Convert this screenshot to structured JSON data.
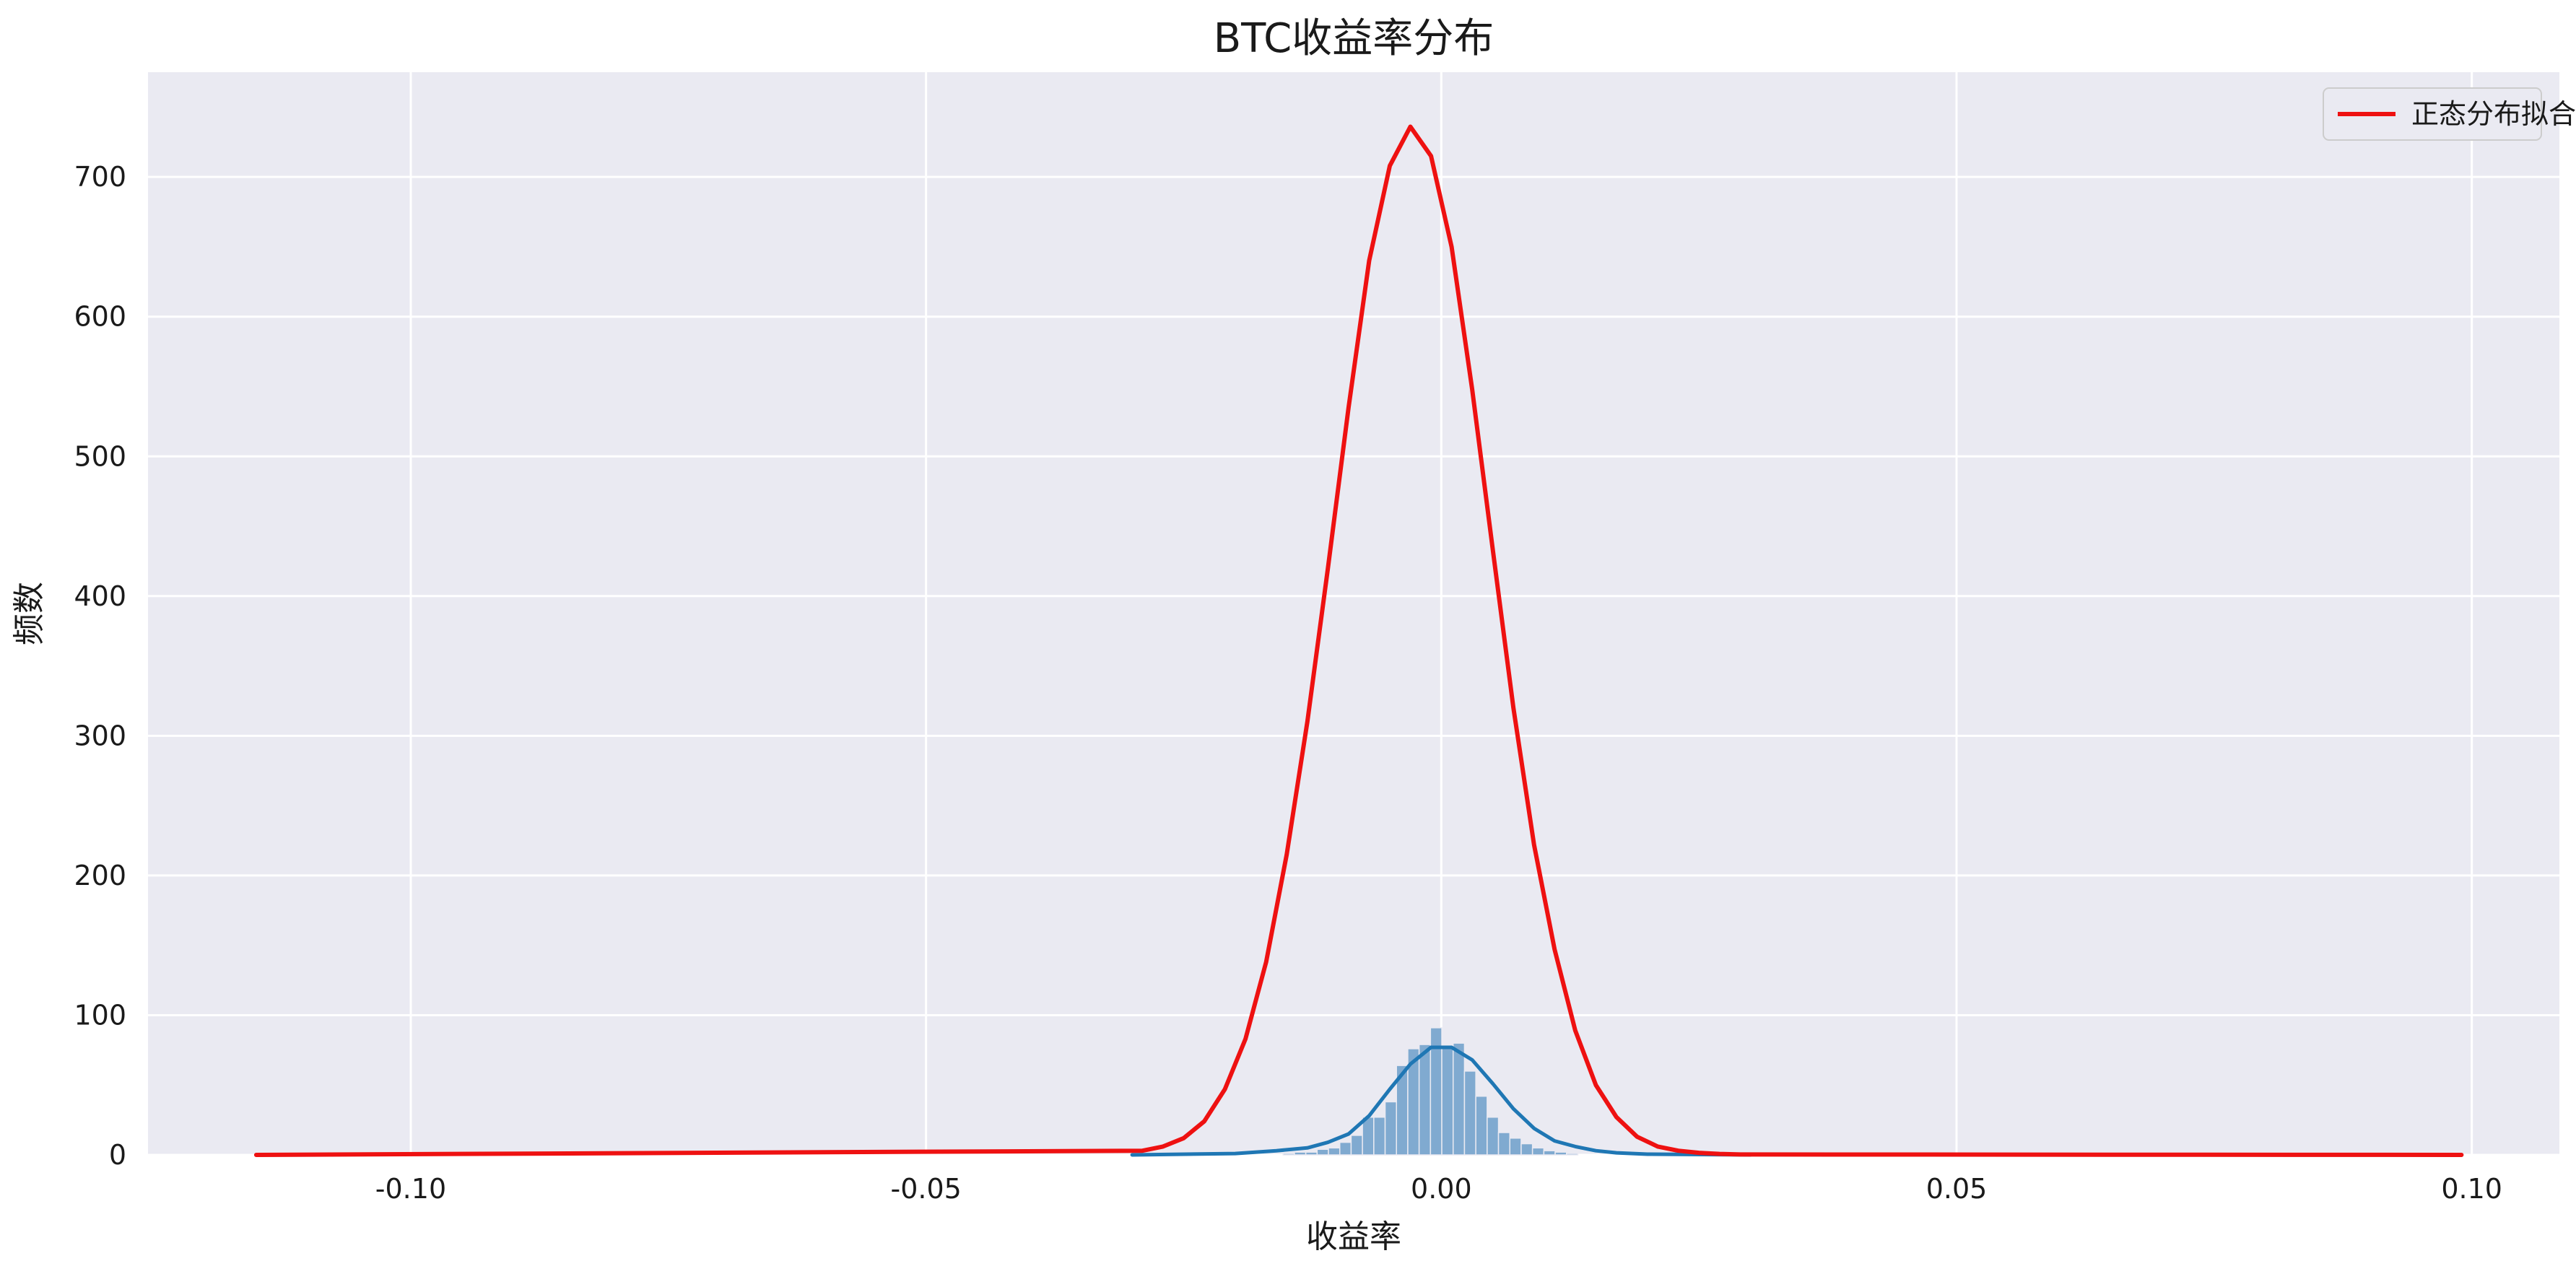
{
  "chart_data": {
    "type": "histogram",
    "title": "BTC收益率分布",
    "xlabel": "收益率",
    "ylabel": "频数",
    "xlim": [
      -0.1255,
      0.1085
    ],
    "ylim": [
      0,
      775
    ],
    "xticks": [
      -0.1,
      -0.05,
      0.0,
      0.05,
      0.1
    ],
    "xtick_labels": [
      "-0.10",
      "-0.05",
      "0.00",
      "0.05",
      "0.10"
    ],
    "yticks": [
      0,
      100,
      200,
      300,
      400,
      500,
      600,
      700
    ],
    "ytick_labels": [
      "0",
      "100",
      "200",
      "300",
      "400",
      "500",
      "600",
      "700"
    ],
    "grid": true,
    "legend_position": "top-right",
    "histogram": {
      "color": "#7aa7cd",
      "bin_width": 0.0011,
      "bins": [
        [
          -0.0148,
          1
        ],
        [
          -0.0137,
          2
        ],
        [
          -0.0126,
          2
        ],
        [
          -0.0115,
          4
        ],
        [
          -0.0104,
          5
        ],
        [
          -0.0093,
          9
        ],
        [
          -0.0082,
          14
        ],
        [
          -0.0071,
          27
        ],
        [
          -0.006,
          27
        ],
        [
          -0.0049,
          38
        ],
        [
          -0.0038,
          64
        ],
        [
          -0.0027,
          76
        ],
        [
          -0.0016,
          79
        ],
        [
          -0.0005,
          91
        ],
        [
          0.0006,
          77
        ],
        [
          0.0017,
          80
        ],
        [
          0.0028,
          60
        ],
        [
          0.0039,
          42
        ],
        [
          0.005,
          27
        ],
        [
          0.0061,
          16
        ],
        [
          0.0072,
          12
        ],
        [
          0.0083,
          8
        ],
        [
          0.0094,
          5
        ],
        [
          0.0105,
          3
        ],
        [
          0.0116,
          2
        ],
        [
          0.0127,
          1
        ]
      ]
    },
    "series": [
      {
        "name": "正态分布拟合",
        "color": "#ee1111",
        "x": [
          -0.115,
          -0.029,
          -0.027,
          -0.025,
          -0.023,
          -0.021,
          -0.019,
          -0.017,
          -0.015,
          -0.013,
          -0.011,
          -0.009,
          -0.007,
          -0.005,
          -0.003,
          -0.001,
          0.001,
          0.003,
          0.005,
          0.007,
          0.009,
          0.011,
          0.013,
          0.015,
          0.017,
          0.019,
          0.021,
          0.023,
          0.025,
          0.027,
          0.029,
          0.099
        ],
        "y": [
          0,
          3,
          6,
          12,
          24,
          47,
          83,
          138,
          215,
          310,
          420,
          535,
          640,
          708,
          736,
          715,
          650,
          548,
          433,
          320,
          222,
          147,
          89,
          50,
          27,
          13,
          6,
          3,
          1.5,
          0.7,
          0.3,
          0
        ]
      },
      {
        "color": "#1f77b4",
        "x": [
          -0.03,
          -0.02,
          -0.016,
          -0.013,
          -0.011,
          -0.009,
          -0.007,
          -0.005,
          -0.003,
          -0.001,
          0.001,
          0.003,
          0.005,
          0.007,
          0.009,
          0.011,
          0.013,
          0.015,
          0.017,
          0.02,
          0.03
        ],
        "y": [
          0,
          1,
          3,
          5,
          9,
          15,
          28,
          47,
          65,
          77,
          77,
          68,
          51,
          33,
          19,
          10,
          6,
          3,
          1.5,
          0.5,
          0
        ]
      }
    ]
  }
}
